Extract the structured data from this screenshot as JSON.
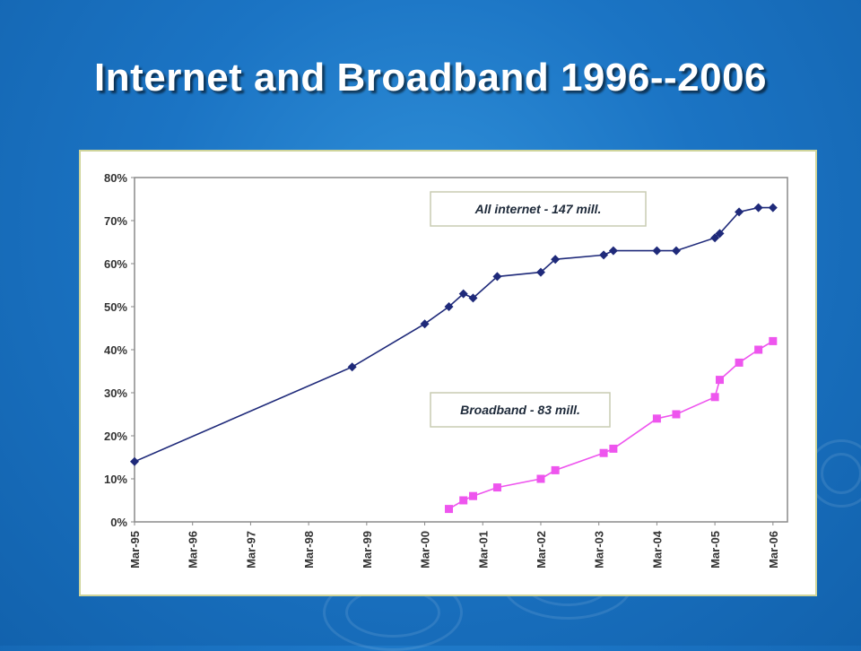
{
  "slide": {
    "title": "Internet and Broadband 1996--2006"
  },
  "colors": {
    "background": "#1b74c4",
    "all_internet": "#1f2a7a",
    "broadband": "#ee55ee",
    "frame_border": "#cfd49a"
  },
  "chart_data": {
    "type": "line",
    "title": "",
    "xlabel": "",
    "ylabel": "",
    "x_unit": "year",
    "xlim": [
      "1995-03",
      "2006-06"
    ],
    "ylim": [
      0,
      80
    ],
    "y_ticks": [
      "0%",
      "10%",
      "20%",
      "30%",
      "40%",
      "50%",
      "60%",
      "70%",
      "80%"
    ],
    "x_ticks": [
      "Mar-95",
      "Mar-96",
      "Mar-97",
      "Mar-98",
      "Mar-99",
      "Mar-00",
      "Mar-01",
      "Mar-02",
      "Mar-03",
      "Mar-04",
      "Mar-05",
      "Mar-06"
    ],
    "grid": false,
    "series": [
      {
        "name": "All internet - 147 mill.",
        "color": "#1f2a7a",
        "marker": "diamond",
        "x": [
          "1995-03",
          "1998-12",
          "2000-03",
          "2000-08",
          "2000-11",
          "2001-01",
          "2001-06",
          "2002-03",
          "2002-06",
          "2003-04",
          "2003-06",
          "2004-03",
          "2004-07",
          "2005-03",
          "2005-04",
          "2005-08",
          "2005-12",
          "2006-03"
        ],
        "y": [
          14,
          36,
          46,
          50,
          53,
          52,
          57,
          58,
          61,
          62,
          63,
          63,
          63,
          66,
          67,
          72,
          73,
          73
        ]
      },
      {
        "name": "Broadband -  83 mill.",
        "color": "#ee55ee",
        "marker": "square",
        "x": [
          "2000-08",
          "2000-11",
          "2001-01",
          "2001-06",
          "2002-03",
          "2002-06",
          "2003-04",
          "2003-06",
          "2004-03",
          "2004-07",
          "2005-03",
          "2005-04",
          "2005-08",
          "2005-12",
          "2006-03"
        ],
        "y": [
          3,
          5,
          6,
          8,
          10,
          12,
          16,
          17,
          24,
          25,
          29,
          33,
          37,
          40,
          42
        ]
      }
    ]
  }
}
